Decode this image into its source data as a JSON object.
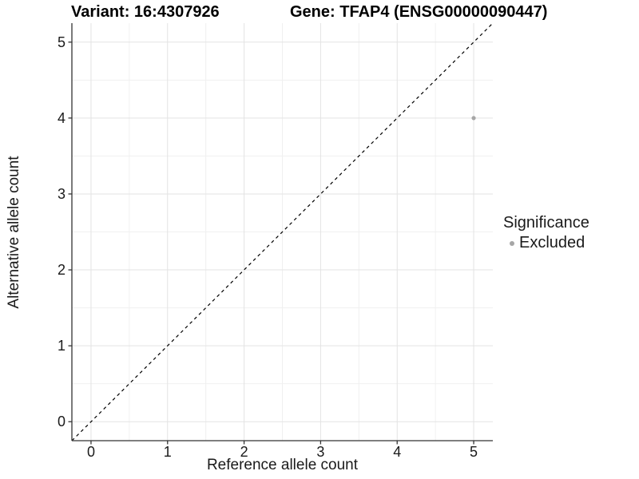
{
  "titles": {
    "variant": "Variant: 16:4307926",
    "gene": "Gene: TFAP4 (ENSG00000090447)"
  },
  "axes": {
    "x_label": "Reference allele count",
    "y_label": "Alternative allele count"
  },
  "legend": {
    "title": "Significance",
    "items": [
      {
        "label": "Excluded",
        "color": "#a6a6a6"
      }
    ]
  },
  "chart_data": {
    "type": "scatter",
    "title": "Variant: 16:4307926   Gene: TFAP4 (ENSG00000090447)",
    "xlabel": "Reference allele count",
    "ylabel": "Alternative allele count",
    "xlim": [
      -0.25,
      5.25
    ],
    "ylim": [
      -0.25,
      5.25
    ],
    "x_ticks": [
      0,
      1,
      2,
      3,
      4,
      5
    ],
    "y_ticks": [
      0,
      1,
      2,
      3,
      4,
      5
    ],
    "x_minor": [
      0.5,
      1.5,
      2.5,
      3.5,
      4.5
    ],
    "y_minor": [
      0.5,
      1.5,
      2.5,
      3.5,
      4.5
    ],
    "grid": true,
    "legend_position": "right",
    "series": [
      {
        "name": "Excluded",
        "color": "#a6a6a6",
        "points": [
          {
            "x": 5,
            "y": 4
          }
        ]
      }
    ],
    "reference_line": {
      "kind": "identity",
      "from": [
        -0.25,
        -0.25
      ],
      "to": [
        5.25,
        5.25
      ],
      "style": "dashed",
      "color": "#000000"
    }
  },
  "colors": {
    "background": "#ffffff",
    "grid_major": "#e3e3e3",
    "grid_minor": "#f0f0f0",
    "axis_line": "#333333",
    "tick_mark": "#333333",
    "tick_text": "#1a1a1a",
    "point": "#a6a6a6"
  }
}
